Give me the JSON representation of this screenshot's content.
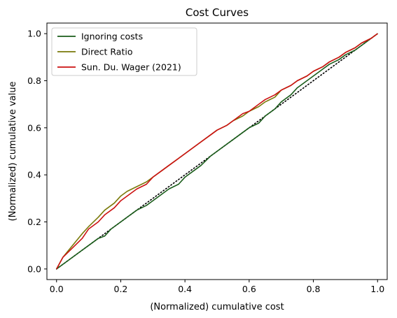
{
  "chart_data": {
    "type": "line",
    "title": "Cost Curves",
    "xlabel": "(Normalized) cumulative cost",
    "ylabel": "(Normalized) cumulative value",
    "xlim": [
      -0.03,
      1.03
    ],
    "ylim": [
      -0.045,
      1.045
    ],
    "xticks": [
      "0.0",
      "0.2",
      "0.4",
      "0.6",
      "0.8",
      "1.0"
    ],
    "yticks": [
      "0.0",
      "0.2",
      "0.4",
      "0.6",
      "0.8",
      "1.0"
    ],
    "grid": false,
    "legend_position": "top-left",
    "reference_line": {
      "style": "dotted",
      "color": "#000000",
      "x": [
        0,
        1
      ],
      "y": [
        0,
        1
      ]
    },
    "series": [
      {
        "name": "Ignoring costs",
        "color": "#1a5c1a",
        "x": [
          0,
          0.02,
          0.05,
          0.08,
          0.1,
          0.13,
          0.15,
          0.17,
          0.2,
          0.22,
          0.25,
          0.28,
          0.3,
          0.33,
          0.35,
          0.38,
          0.4,
          0.43,
          0.45,
          0.48,
          0.5,
          0.53,
          0.55,
          0.58,
          0.6,
          0.63,
          0.65,
          0.68,
          0.7,
          0.73,
          0.75,
          0.78,
          0.8,
          0.83,
          0.85,
          0.88,
          0.9,
          0.93,
          0.95,
          0.98,
          1.0
        ],
        "y": [
          0,
          0.02,
          0.05,
          0.08,
          0.1,
          0.13,
          0.14,
          0.17,
          0.2,
          0.22,
          0.25,
          0.27,
          0.29,
          0.32,
          0.34,
          0.36,
          0.39,
          0.42,
          0.44,
          0.48,
          0.5,
          0.53,
          0.55,
          0.58,
          0.6,
          0.62,
          0.65,
          0.68,
          0.71,
          0.74,
          0.77,
          0.8,
          0.82,
          0.85,
          0.87,
          0.89,
          0.91,
          0.93,
          0.95,
          0.98,
          1.0
        ]
      },
      {
        "name": "Direct Ratio",
        "color": "#7a7a0a",
        "x": [
          0,
          0.02,
          0.05,
          0.08,
          0.1,
          0.13,
          0.15,
          0.18,
          0.2,
          0.22,
          0.25,
          0.28,
          0.3,
          0.33,
          0.35,
          0.38,
          0.4,
          0.43,
          0.45,
          0.48,
          0.5,
          0.53,
          0.55,
          0.58,
          0.6,
          0.63,
          0.65,
          0.68,
          0.7,
          0.73,
          0.75,
          0.78,
          0.8,
          0.83,
          0.85,
          0.88,
          0.9,
          0.93,
          0.95,
          0.98,
          1.0
        ],
        "y": [
          0,
          0.05,
          0.1,
          0.15,
          0.18,
          0.22,
          0.25,
          0.28,
          0.31,
          0.33,
          0.35,
          0.37,
          0.39,
          0.42,
          0.44,
          0.47,
          0.49,
          0.52,
          0.54,
          0.57,
          0.59,
          0.61,
          0.63,
          0.65,
          0.67,
          0.69,
          0.71,
          0.73,
          0.76,
          0.78,
          0.8,
          0.82,
          0.84,
          0.86,
          0.88,
          0.9,
          0.92,
          0.94,
          0.96,
          0.98,
          1.0
        ]
      },
      {
        "name": "Sun. Du. Wager (2021)",
        "color": "#cc1111",
        "x": [
          0,
          0.02,
          0.05,
          0.08,
          0.1,
          0.13,
          0.15,
          0.18,
          0.2,
          0.22,
          0.25,
          0.28,
          0.3,
          0.33,
          0.35,
          0.38,
          0.4,
          0.43,
          0.45,
          0.48,
          0.5,
          0.53,
          0.55,
          0.58,
          0.6,
          0.63,
          0.65,
          0.68,
          0.7,
          0.73,
          0.75,
          0.78,
          0.8,
          0.83,
          0.85,
          0.88,
          0.9,
          0.93,
          0.95,
          0.98,
          1.0
        ],
        "y": [
          0,
          0.05,
          0.09,
          0.13,
          0.17,
          0.2,
          0.23,
          0.26,
          0.29,
          0.31,
          0.34,
          0.36,
          0.39,
          0.42,
          0.44,
          0.47,
          0.49,
          0.52,
          0.54,
          0.57,
          0.59,
          0.61,
          0.63,
          0.66,
          0.67,
          0.7,
          0.72,
          0.74,
          0.76,
          0.78,
          0.8,
          0.82,
          0.84,
          0.86,
          0.88,
          0.9,
          0.92,
          0.94,
          0.96,
          0.98,
          1.0
        ]
      }
    ]
  }
}
